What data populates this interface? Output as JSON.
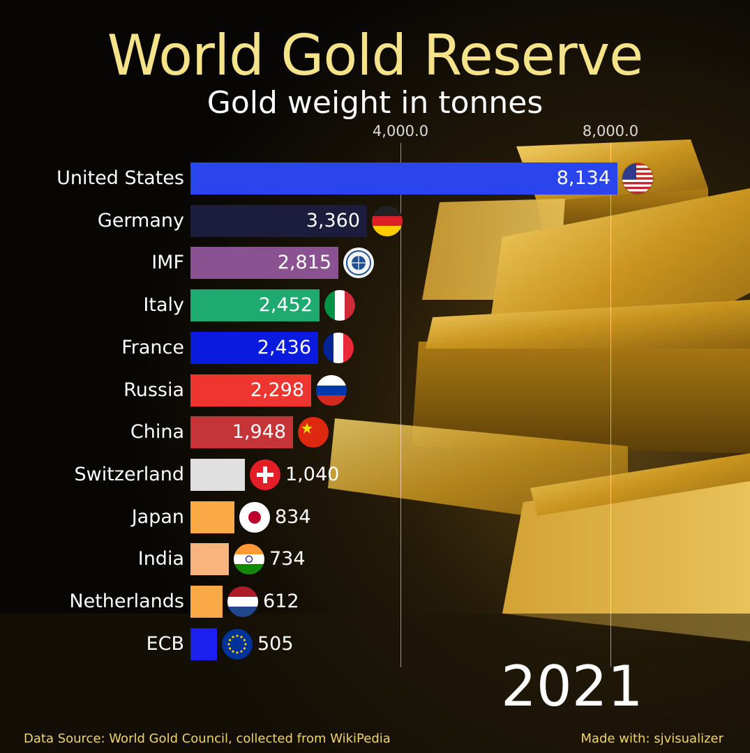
{
  "title": "World Gold Reserve",
  "subtitle": "Gold weight in tonnes",
  "year": "2021",
  "footer": {
    "source": "Data Source: World Gold Council, collected from WikiPedia",
    "credit": "Made with: sjvisualizer"
  },
  "chart_data": {
    "type": "bar",
    "orientation": "horizontal",
    "title": "World Gold Reserve",
    "subtitle": "Gold weight in tonnes",
    "xlabel": "",
    "ylabel": "",
    "x_ticks": [
      "4,000.0",
      "8,000.0"
    ],
    "x_tick_values": [
      4000,
      8000
    ],
    "grid": true,
    "categories": [
      "United States",
      "Germany",
      "IMF",
      "Italy",
      "France",
      "Russia",
      "China",
      "Switzerland",
      "Japan",
      "India",
      "Netherlands",
      "ECB"
    ],
    "values": [
      8134,
      3360,
      2815,
      2452,
      2436,
      2298,
      1948,
      1040,
      834,
      734,
      612,
      505
    ],
    "value_labels": [
      "8,134",
      "3,360",
      "2,815",
      "2,452",
      "2,436",
      "2,298",
      "1,948",
      "1,040",
      "834",
      "734",
      "612",
      "505"
    ],
    "colors": [
      "#2a44ee",
      "#1c1c3c",
      "#8a5290",
      "#1faa72",
      "#0a1adf",
      "#ef3530",
      "#c53538",
      "#e0e0e0",
      "#f9a946",
      "#f9b47e",
      "#f9a946",
      "#1b20ee"
    ],
    "flags": [
      "us-flag-icon",
      "germany-flag-icon",
      "imf-logo-icon",
      "italy-flag-icon",
      "france-flag-icon",
      "russia-flag-icon",
      "china-flag-icon",
      "switzerland-flag-icon",
      "japan-flag-icon",
      "india-flag-icon",
      "netherlands-flag-icon",
      "eu-flag-icon"
    ]
  }
}
